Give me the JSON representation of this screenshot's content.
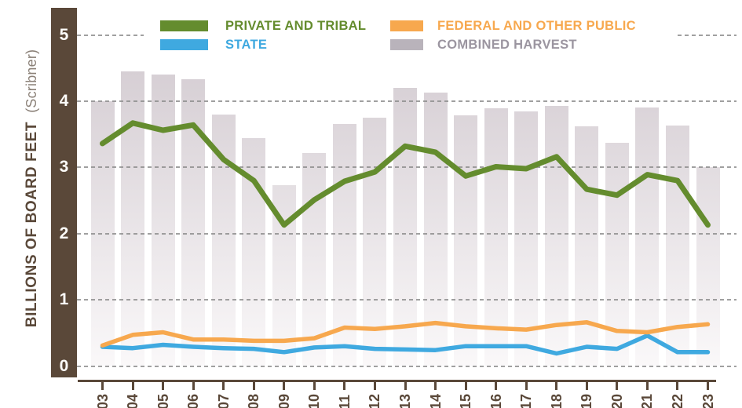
{
  "y_axis": {
    "title_bold": "BILLIONS OF BOARD FEET",
    "title_light": "(Scribner)",
    "ticks": [
      "5",
      "4",
      "3",
      "2",
      "1",
      "0"
    ]
  },
  "legend": [
    {
      "id": "private-tribal",
      "label": "PRIVATE AND TRIBAL"
    },
    {
      "id": "state",
      "label": "STATE"
    },
    {
      "id": "federal-public",
      "label": "FEDERAL AND OTHER PUBLIC"
    },
    {
      "id": "combined-harvest",
      "label": "COMBINED HARVEST"
    }
  ],
  "colors": {
    "axis_brown": "#5a4839",
    "scribner_taupe": "#8b8178",
    "green": "#648c2e",
    "blue": "#3fa9e0",
    "orange": "#f7a84e",
    "bar_gradient_top": "#d2cad0",
    "bar_gradient_bottom": "#faf8f9",
    "gridline_gray": "#8f8f8f",
    "combined_swatch": "#b9b3bb",
    "combined_text": "#9b95a0",
    "y_tick_white": "#fdfcf9"
  },
  "chart_data": {
    "type": "bar+line",
    "categories": [
      "03",
      "04",
      "05",
      "06",
      "07",
      "08",
      "09",
      "10",
      "11",
      "12",
      "13",
      "14",
      "15",
      "16",
      "17",
      "18",
      "19",
      "20",
      "21",
      "22",
      "23"
    ],
    "series": [
      {
        "name": "COMBINED HARVEST",
        "type": "bar",
        "color_key": "combined_swatch",
        "values": [
          4.0,
          4.45,
          4.4,
          4.33,
          3.8,
          3.44,
          2.73,
          3.22,
          3.65,
          3.75,
          4.2,
          4.13,
          3.78,
          3.89,
          3.85,
          3.93,
          3.62,
          3.37,
          3.9,
          3.63,
          3.0
        ]
      },
      {
        "name": "PRIVATE AND TRIBAL",
        "type": "line",
        "color_key": "green",
        "values": [
          3.36,
          3.67,
          3.56,
          3.64,
          3.12,
          2.8,
          2.13,
          2.51,
          2.79,
          2.93,
          3.32,
          3.23,
          2.87,
          3.01,
          2.98,
          3.16,
          2.67,
          2.58,
          2.89,
          2.8,
          2.13
        ]
      },
      {
        "name": "STATE",
        "type": "line",
        "color_key": "blue",
        "values": [
          0.29,
          0.27,
          0.32,
          0.29,
          0.27,
          0.26,
          0.21,
          0.28,
          0.3,
          0.26,
          0.25,
          0.24,
          0.3,
          0.3,
          0.3,
          0.19,
          0.29,
          0.26,
          0.46,
          0.21,
          0.21
        ]
      },
      {
        "name": "FEDERAL AND OTHER PUBLIC",
        "type": "line",
        "color_key": "orange",
        "values": [
          0.31,
          0.47,
          0.51,
          0.4,
          0.4,
          0.38,
          0.38,
          0.42,
          0.58,
          0.56,
          0.6,
          0.65,
          0.6,
          0.57,
          0.55,
          0.62,
          0.66,
          0.53,
          0.51,
          0.59,
          0.63
        ]
      }
    ],
    "title": "",
    "xlabel": "",
    "ylabel": "BILLIONS OF BOARD FEET (Scribner)",
    "ylim": [
      0,
      5
    ],
    "y_ticks": [
      0,
      1,
      2,
      3,
      4,
      5
    ],
    "grid": "dashed-horizontal",
    "legend_position": "top"
  }
}
